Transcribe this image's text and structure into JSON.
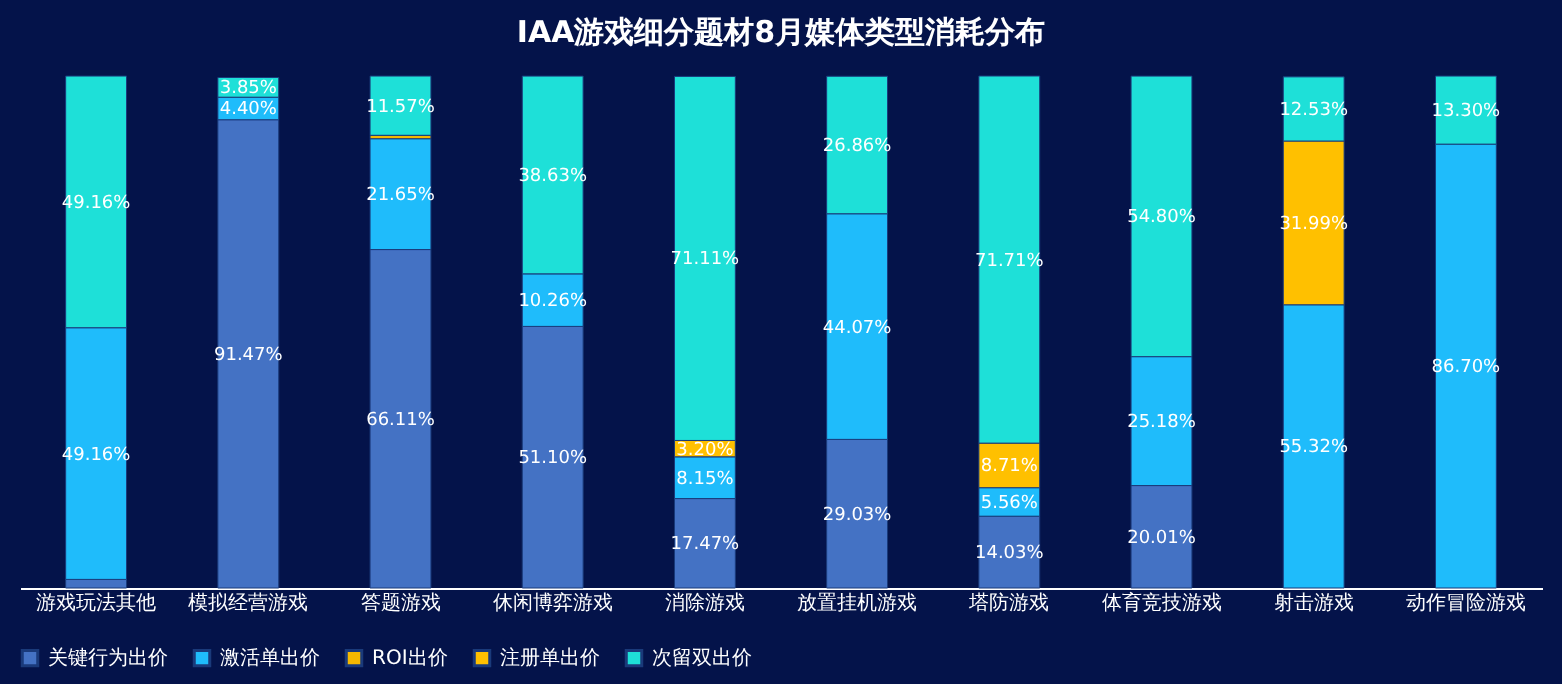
{
  "chart_data": {
    "type": "bar",
    "stacked": true,
    "title": "IAA游戏细分题材8月媒体类型消耗分布",
    "categories": [
      "游戏玩法其他",
      "模拟经营游戏",
      "答题游戏",
      "休闲博弈游戏",
      "消除游戏",
      "放置挂机游戏",
      "塔防游戏",
      "体育竞技游戏",
      "射击游戏",
      "动作冒险游戏"
    ],
    "series": [
      {
        "name": "关键行为出价",
        "color": "#4472c4",
        "values": [
          1.68,
          91.47,
          66.11,
          51.1,
          17.47,
          29.03,
          14.03,
          20.01,
          null,
          null
        ],
        "value_labels": [
          null,
          "91.47%",
          "66.11%",
          "51.10%",
          "17.47%",
          "29.03%",
          "14.03%",
          "20.01%",
          null,
          null
        ]
      },
      {
        "name": "激活单出价",
        "color": "#1fbcfb",
        "values": [
          49.16,
          4.4,
          21.65,
          10.26,
          8.15,
          44.07,
          5.56,
          25.18,
          55.32,
          86.7
        ],
        "value_labels": [
          "49.16%",
          "4.40%",
          "21.65%",
          "10.26%",
          "8.15%",
          "44.07%",
          "5.56%",
          "25.18%",
          "55.32%",
          "86.70%"
        ]
      },
      {
        "name": "ROI出价",
        "color": "#f5b800",
        "values": [
          null,
          null,
          0.67,
          null,
          null,
          null,
          null,
          null,
          null,
          null
        ],
        "value_labels": [
          null,
          null,
          null,
          null,
          null,
          null,
          null,
          null,
          null,
          null
        ]
      },
      {
        "name": "注册单出价",
        "color": "#ffc000",
        "values": [
          null,
          null,
          null,
          null,
          3.2,
          null,
          8.71,
          null,
          31.99,
          null
        ],
        "value_labels": [
          null,
          null,
          null,
          null,
          "3.20%",
          null,
          "8.71%",
          null,
          "31.99%",
          null
        ]
      },
      {
        "name": "次留双出价",
        "color": "#1ee0d8",
        "values": [
          49.16,
          3.85,
          11.57,
          38.63,
          71.11,
          26.86,
          71.71,
          54.8,
          12.53,
          13.3
        ],
        "value_labels": [
          "49.16%",
          "3.85%",
          "11.57%",
          "38.63%",
          "71.11%",
          "26.86%",
          "71.71%",
          "54.80%",
          "12.53%",
          "13.30%"
        ]
      }
    ],
    "legend": "bottom",
    "grid": false
  }
}
